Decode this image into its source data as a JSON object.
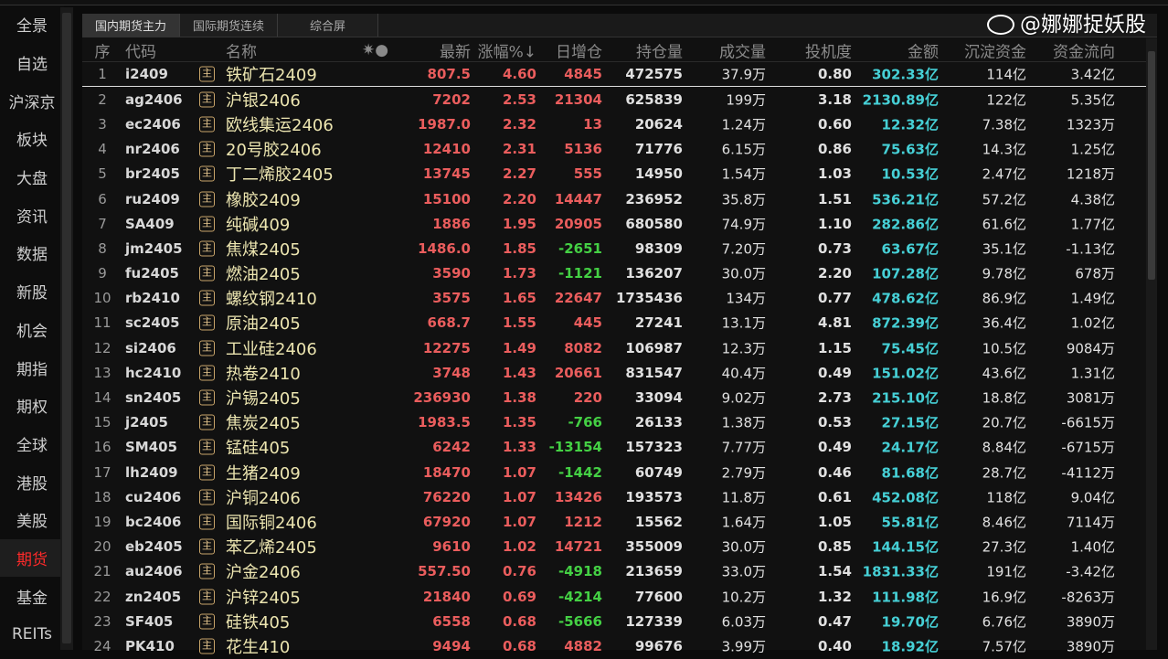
{
  "sidebar": {
    "items": [
      "全景",
      "自选",
      "沪深京",
      "板块",
      "大盘",
      "资讯",
      "数据",
      "新股",
      "机会",
      "期指",
      "期权",
      "全球",
      "港股",
      "美股",
      "期货",
      "基金",
      "REITs"
    ],
    "active": "期货"
  },
  "tabs": [
    "国内期货主力",
    "国际期货连续",
    "综合屏"
  ],
  "columns": {
    "seq": "序",
    "code": "代码",
    "name": "名称",
    "stars": "✷●",
    "last": "最新",
    "chg": "涨幅%↓",
    "inc": "日增仓",
    "oi": "持仓量",
    "vol": "成交量",
    "spec": "投机度",
    "amt": "金额",
    "dep": "沉淀资金",
    "flow": "资金流向"
  },
  "colors": {
    "up": "#ea5d5d",
    "down": "#44d044",
    "amount": "#46d0d6",
    "active_sidebar": "#ff2a2a"
  },
  "rows": [
    [
      "1",
      "i2409",
      "铁矿石2409",
      "807.5",
      "4.60",
      "4845",
      "472575",
      "37.9万",
      "0.80",
      "302.33亿",
      "114亿",
      "3.42亿"
    ],
    [
      "2",
      "ag2406",
      "沪银2406",
      "7202",
      "2.53",
      "21304",
      "625839",
      "199万",
      "3.18",
      "2130.89亿",
      "122亿",
      "5.35亿"
    ],
    [
      "3",
      "ec2406",
      "欧线集运2406",
      "1987.0",
      "2.32",
      "13",
      "20624",
      "1.24万",
      "0.60",
      "12.32亿",
      "7.38亿",
      "1323万"
    ],
    [
      "4",
      "nr2406",
      "20号胶2406",
      "12410",
      "2.31",
      "5136",
      "71776",
      "6.15万",
      "0.86",
      "75.63亿",
      "14.3亿",
      "1.25亿"
    ],
    [
      "5",
      "br2405",
      "丁二烯胶2405",
      "13745",
      "2.27",
      "555",
      "14950",
      "1.54万",
      "1.03",
      "10.53亿",
      "2.47亿",
      "1218万"
    ],
    [
      "6",
      "ru2409",
      "橡胶2409",
      "15100",
      "2.20",
      "14447",
      "236952",
      "35.8万",
      "1.51",
      "536.21亿",
      "57.2亿",
      "4.38亿"
    ],
    [
      "7",
      "SA409",
      "纯碱409",
      "1886",
      "1.95",
      "20905",
      "680580",
      "74.9万",
      "1.10",
      "282.86亿",
      "61.6亿",
      "1.77亿"
    ],
    [
      "8",
      "jm2405",
      "焦煤2405",
      "1486.0",
      "1.85",
      "-2651",
      "98309",
      "7.20万",
      "0.73",
      "63.67亿",
      "35.1亿",
      "-1.13亿"
    ],
    [
      "9",
      "fu2405",
      "燃油2405",
      "3590",
      "1.73",
      "-1121",
      "136207",
      "30.0万",
      "2.20",
      "107.28亿",
      "9.78亿",
      "678万"
    ],
    [
      "10",
      "rb2410",
      "螺纹钢2410",
      "3575",
      "1.65",
      "22647",
      "1735436",
      "134万",
      "0.77",
      "478.62亿",
      "86.9亿",
      "1.49亿"
    ],
    [
      "11",
      "sc2405",
      "原油2405",
      "668.7",
      "1.55",
      "445",
      "27241",
      "13.1万",
      "4.81",
      "872.39亿",
      "36.4亿",
      "1.02亿"
    ],
    [
      "12",
      "si2406",
      "工业硅2406",
      "12275",
      "1.49",
      "8082",
      "106987",
      "12.3万",
      "1.15",
      "75.45亿",
      "10.5亿",
      "9084万"
    ],
    [
      "13",
      "hc2410",
      "热卷2410",
      "3748",
      "1.43",
      "20661",
      "831547",
      "40.4万",
      "0.49",
      "151.02亿",
      "43.6亿",
      "1.31亿"
    ],
    [
      "14",
      "sn2405",
      "沪锡2405",
      "236930",
      "1.38",
      "220",
      "33094",
      "9.02万",
      "2.73",
      "215.10亿",
      "18.8亿",
      "3081万"
    ],
    [
      "15",
      "j2405",
      "焦炭2405",
      "1983.5",
      "1.35",
      "-766",
      "26133",
      "1.38万",
      "0.53",
      "27.15亿",
      "20.7亿",
      "-6615万"
    ],
    [
      "16",
      "SM405",
      "锰硅405",
      "6242",
      "1.33",
      "-13154",
      "157323",
      "7.77万",
      "0.49",
      "24.17亿",
      "8.84亿",
      "-6715万"
    ],
    [
      "17",
      "lh2409",
      "生猪2409",
      "18470",
      "1.07",
      "-1442",
      "60749",
      "2.79万",
      "0.46",
      "81.68亿",
      "28.7亿",
      "-4112万"
    ],
    [
      "18",
      "cu2406",
      "沪铜2406",
      "76220",
      "1.07",
      "13426",
      "193573",
      "11.8万",
      "0.61",
      "452.08亿",
      "118亿",
      "9.04亿"
    ],
    [
      "19",
      "bc2406",
      "国际铜2406",
      "67920",
      "1.07",
      "1212",
      "15562",
      "1.64万",
      "1.05",
      "55.81亿",
      "8.46亿",
      "7114万"
    ],
    [
      "20",
      "eb2405",
      "苯乙烯2405",
      "9610",
      "1.02",
      "14721",
      "355009",
      "30.0万",
      "0.85",
      "144.15亿",
      "27.3亿",
      "1.40亿"
    ],
    [
      "21",
      "au2406",
      "沪金2406",
      "557.50",
      "0.76",
      "-4918",
      "213659",
      "33.0万",
      "1.54",
      "1831.33亿",
      "191亿",
      "-3.42亿"
    ],
    [
      "22",
      "zn2405",
      "沪锌2405",
      "21840",
      "0.69",
      "-4214",
      "77600",
      "10.2万",
      "1.32",
      "111.98亿",
      "16.9亿",
      "-8263万"
    ],
    [
      "23",
      "SF405",
      "硅铁405",
      "6558",
      "0.68",
      "-5666",
      "127339",
      "6.03万",
      "0.47",
      "19.70亿",
      "6.76亿",
      "3890万"
    ],
    [
      "24",
      "PK410",
      "花生410",
      "9494",
      "0.68",
      "4882",
      "99676",
      "3.99万",
      "0.40",
      "18.92亿",
      "7.57亿",
      "3890万"
    ]
  ],
  "row_icon": "主",
  "watermark": "@娜娜捉妖股"
}
